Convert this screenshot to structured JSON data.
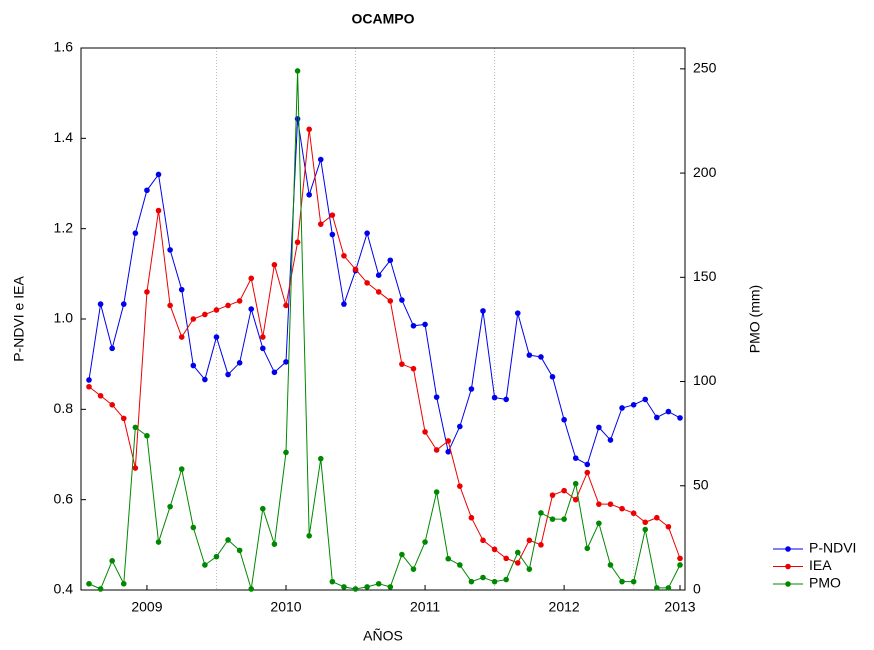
{
  "chart_data": {
    "type": "line",
    "title": "OCAMPO",
    "x_label": "AÑOS",
    "y_label": "P-NDVI e IEA",
    "y2_label": "PMO (mm)",
    "categories": [
      null,
      null,
      null,
      null,
      null,
      "2009",
      null,
      null,
      null,
      null,
      null,
      null,
      null,
      null,
      null,
      null,
      null,
      "2010",
      null,
      null,
      null,
      null,
      null,
      null,
      null,
      null,
      null,
      null,
      null,
      "2011",
      null,
      null,
      null,
      null,
      null,
      null,
      null,
      null,
      null,
      null,
      null,
      "2012",
      null,
      null,
      null,
      null,
      null,
      null,
      null,
      null,
      null,
      "2013"
    ],
    "ylim": [
      0.4,
      1.6
    ],
    "yticks": [
      0.4,
      0.6,
      0.8,
      {
        "value": 1,
        "label": "1.0"
      },
      1.2,
      1.4,
      1.6
    ],
    "y2lim": [
      0,
      260
    ],
    "y2ticks": [
      0,
      50,
      100,
      150,
      200,
      250
    ],
    "grid": true,
    "legend": "bottom-right",
    "series": [
      {
        "name": "P-NDVI",
        "color": "#0000ee",
        "values": [
          0.865,
          1.033,
          0.935,
          1.033,
          1.19,
          1.285,
          1.32,
          1.153,
          1.065,
          0.897,
          0.866,
          0.96,
          0.877,
          0.903,
          1.022,
          0.935,
          0.882,
          0.905,
          1.443,
          1.275,
          1.353,
          1.187,
          1.033,
          1.107,
          1.19,
          1.097,
          1.13,
          1.042,
          0.985,
          0.988,
          0.827,
          0.706,
          0.762,
          0.845,
          1.018,
          0.826,
          0.822,
          1.013,
          0.92,
          0.916,
          0.872,
          0.777,
          0.692,
          0.678,
          0.76,
          0.732,
          0.803,
          0.81,
          0.822,
          0.782,
          0.795,
          0.781
        ]
      },
      {
        "name": "IEA",
        "color": "#ee0000",
        "values": [
          0.85,
          0.83,
          0.81,
          0.78,
          0.67,
          1.06,
          1.24,
          1.03,
          0.96,
          1.0,
          1.01,
          1.02,
          1.03,
          1.04,
          1.09,
          0.96,
          1.12,
          1.03,
          1.17,
          1.42,
          1.21,
          1.23,
          1.14,
          1.11,
          1.08,
          1.06,
          1.04,
          0.9,
          0.89,
          0.75,
          0.71,
          0.73,
          0.63,
          0.56,
          0.51,
          0.49,
          0.47,
          0.46,
          0.51,
          0.5,
          0.61,
          0.62,
          0.6,
          0.66,
          0.59,
          0.59,
          0.58,
          0.57,
          0.55,
          0.56,
          0.54,
          0.47
        ]
      },
      {
        "name": "PMO",
        "color": "#008800",
        "axis": "y2",
        "values": [
          3,
          0.5,
          14,
          3,
          78,
          74,
          23,
          40,
          58,
          30,
          12,
          16,
          24,
          19,
          0.5,
          39,
          22,
          66,
          249,
          26,
          63,
          4,
          1.5,
          0.5,
          1.5,
          3,
          1.5,
          17,
          10,
          23,
          47,
          15,
          12,
          4,
          6,
          4,
          5,
          18,
          10,
          37,
          34,
          34,
          51,
          20,
          32,
          12,
          4,
          4,
          29,
          1,
          1,
          12
        ]
      }
    ]
  }
}
